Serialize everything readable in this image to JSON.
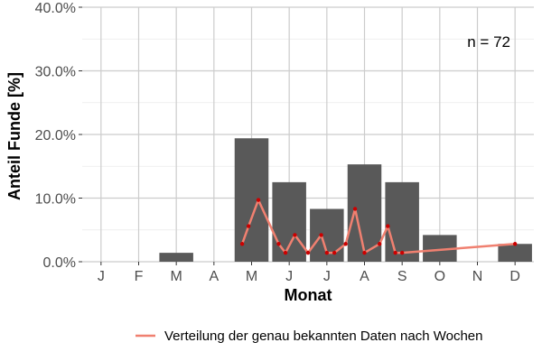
{
  "chart_data": {
    "type": "bar",
    "categories": [
      "J",
      "F",
      "M",
      "A",
      "M",
      "J",
      "J",
      "A",
      "S",
      "O",
      "N",
      "D"
    ],
    "values": [
      0,
      0,
      1.4,
      0,
      19.4,
      12.5,
      8.3,
      15.3,
      12.5,
      4.2,
      0,
      2.8
    ],
    "bar_color": "#595959",
    "ylim": [
      0,
      40
    ],
    "yticks": [
      0,
      10,
      20,
      30,
      40
    ],
    "ytick_labels": [
      "0.0%",
      "10.0%",
      "20.0%",
      "30.0%",
      "40.0%"
    ],
    "xlabel": "Monat",
    "ylabel": "Anteil Funde [%]",
    "grid": true,
    "annotation": "n = 72",
    "line_series": {
      "name": "Verteilung der genau bekannten Daten nach Wochen",
      "color": "#f08070",
      "point_color": "#cc0000",
      "x": [
        4.75,
        4.92,
        5.18,
        5.72,
        5.9,
        6.15,
        6.5,
        6.85,
        7.0,
        7.2,
        7.5,
        7.75,
        8.0,
        8.4,
        8.62,
        8.82,
        9.0,
        12.0
      ],
      "y": [
        2.8,
        5.6,
        9.7,
        2.8,
        1.4,
        4.2,
        1.4,
        4.2,
        1.4,
        1.4,
        2.8,
        8.3,
        1.4,
        2.8,
        5.6,
        1.4,
        1.4,
        2.8
      ]
    },
    "legend_position": "bottom-right"
  }
}
